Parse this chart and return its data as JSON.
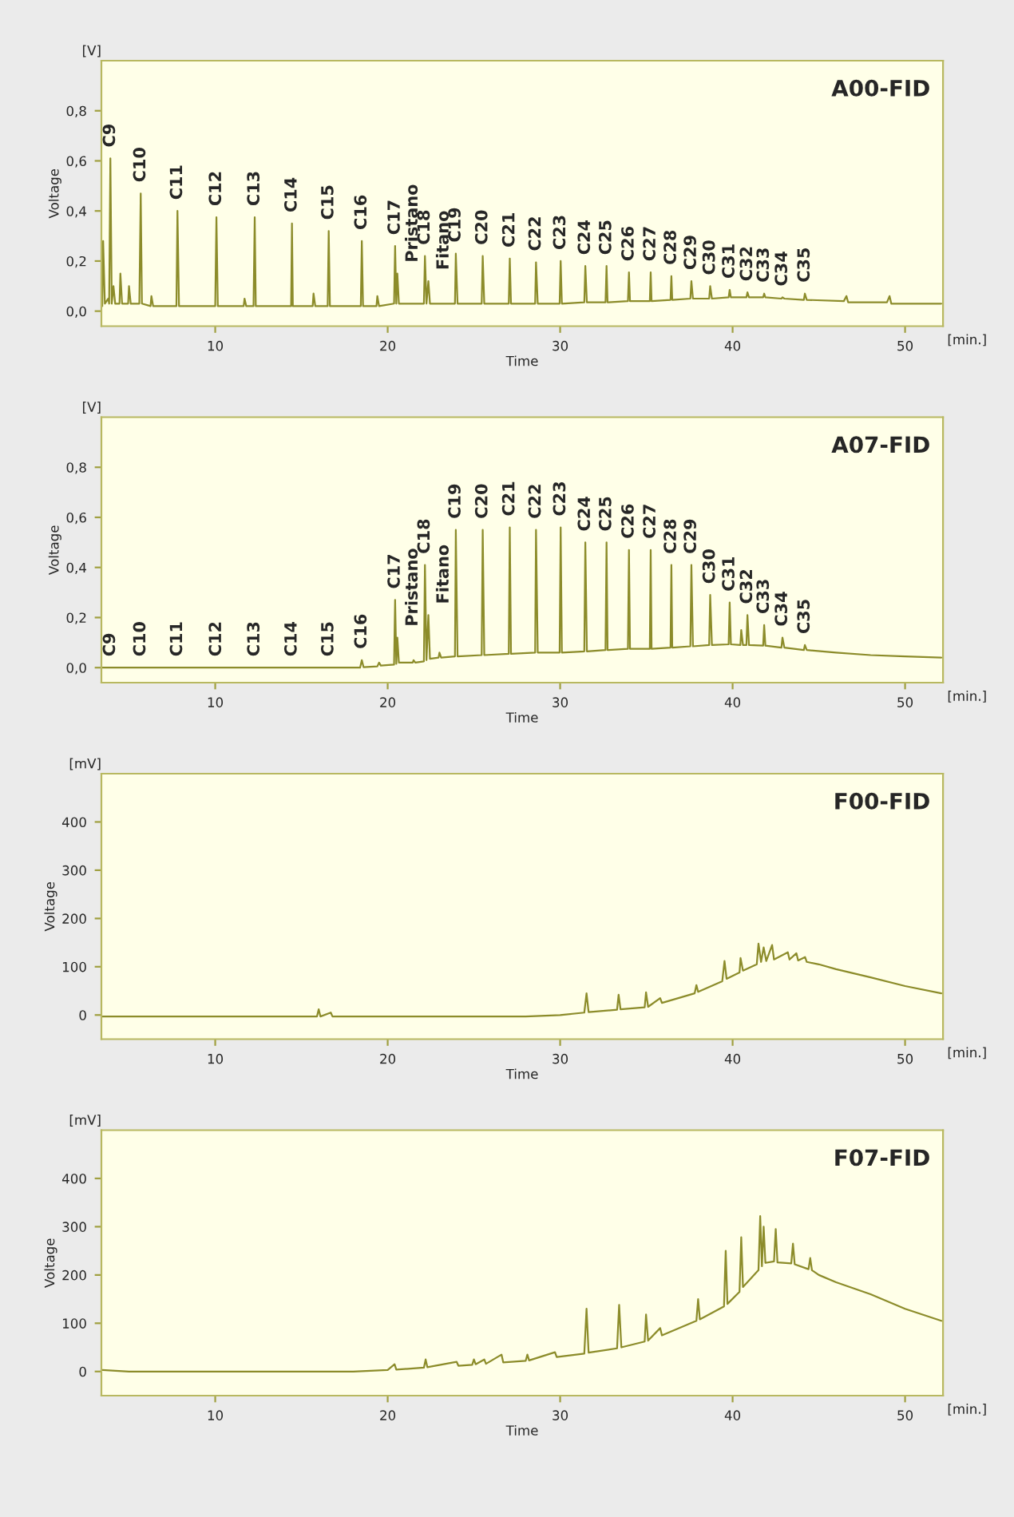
{
  "chart_data": [
    {
      "type": "line",
      "title": "A00-FID",
      "xlabel": "Time",
      "ylabel": "Voltage",
      "xlim": [
        3.4,
        52.2
      ],
      "xticks": [
        10,
        20,
        30,
        40,
        50
      ],
      "ylim": [
        -0.06,
        1.0
      ],
      "yticks": [
        {
          "value": 0,
          "label": "0,0"
        },
        {
          "value": 0.2,
          "label": "0,2"
        },
        {
          "value": 0.4,
          "label": "0,4"
        },
        {
          "value": 0.6,
          "label": "0,6"
        },
        {
          "value": 0.8,
          "label": "0,8"
        }
      ],
      "series": [
        {
          "color": "#8c8c2a",
          "x": [
            3.45,
            3.5,
            3.6,
            3.8,
            3.85,
            3.92,
            4.0,
            4.1,
            4.2,
            4.45,
            4.5,
            4.6,
            4.95,
            5.0,
            5.1,
            5.6,
            5.68,
            5.75,
            6.25,
            6.3,
            6.4,
            7.75,
            7.81,
            7.9,
            10.0,
            10.07,
            10.15,
            11.65,
            11.7,
            11.8,
            12.22,
            12.29,
            12.35,
            14.4,
            14.45,
            14.5,
            15.65,
            15.7,
            15.8,
            16.52,
            16.58,
            16.65,
            18.44,
            18.5,
            18.57,
            19.35,
            19.4,
            19.5,
            20.37,
            20.43,
            20.5,
            20.56,
            20.65,
            22.1,
            22.16,
            22.25,
            22.36,
            22.45,
            23.9,
            23.95,
            24.05,
            25.45,
            25.51,
            25.6,
            27.02,
            27.08,
            27.15,
            28.55,
            28.6,
            28.7,
            29.97,
            30.03,
            30.1,
            31.4,
            31.46,
            31.55,
            32.63,
            32.69,
            32.75,
            33.93,
            33.99,
            34.05,
            35.2,
            35.25,
            35.3,
            36.4,
            36.45,
            36.5,
            37.55,
            37.61,
            37.7,
            38.64,
            38.7,
            38.8,
            39.77,
            39.83,
            39.9,
            40.8,
            40.86,
            40.95,
            41.77,
            41.83,
            41.9,
            42.83,
            42.89,
            43.0,
            44.13,
            44.19,
            44.3,
            46.45,
            46.6,
            46.7,
            48.95,
            49.1,
            49.2,
            52.1
          ],
          "values": [
            0.02,
            0.28,
            0.03,
            0.05,
            0.03,
            0.61,
            0.03,
            0.1,
            0.03,
            0.03,
            0.15,
            0.03,
            0.03,
            0.1,
            0.03,
            0.03,
            0.47,
            0.03,
            0.02,
            0.06,
            0.02,
            0.02,
            0.4,
            0.02,
            0.02,
            0.375,
            0.02,
            0.02,
            0.05,
            0.02,
            0.02,
            0.375,
            0.02,
            0.02,
            0.35,
            0.02,
            0.02,
            0.07,
            0.02,
            0.02,
            0.32,
            0.02,
            0.02,
            0.28,
            0.02,
            0.02,
            0.06,
            0.02,
            0.03,
            0.26,
            0.03,
            0.15,
            0.03,
            0.03,
            0.22,
            0.03,
            0.12,
            0.03,
            0.03,
            0.23,
            0.03,
            0.03,
            0.22,
            0.03,
            0.03,
            0.21,
            0.03,
            0.03,
            0.195,
            0.03,
            0.03,
            0.2,
            0.03,
            0.035,
            0.18,
            0.035,
            0.035,
            0.18,
            0.035,
            0.04,
            0.155,
            0.04,
            0.04,
            0.155,
            0.04,
            0.045,
            0.14,
            0.045,
            0.05,
            0.12,
            0.05,
            0.05,
            0.1,
            0.05,
            0.055,
            0.085,
            0.055,
            0.055,
            0.075,
            0.055,
            0.055,
            0.07,
            0.055,
            0.05,
            0.055,
            0.05,
            0.045,
            0.07,
            0.045,
            0.04,
            0.06,
            0.035,
            0.035,
            0.06,
            0.03,
            0.03
          ]
        }
      ],
      "annotations": [
        "[V]",
        "[min.]",
        {
          "text": "C9",
          "x": 3.92,
          "y": 0.61
        },
        {
          "text": "C10",
          "x": 5.68,
          "y": 0.47
        },
        {
          "text": "C11",
          "x": 7.81,
          "y": 0.4
        },
        {
          "text": "C12",
          "x": 10.07,
          "y": 0.375
        },
        {
          "text": "C13",
          "x": 12.29,
          "y": 0.375
        },
        {
          "text": "C14",
          "x": 14.45,
          "y": 0.35
        },
        {
          "text": "C15",
          "x": 16.58,
          "y": 0.32
        },
        {
          "text": "C16",
          "x": 18.5,
          "y": 0.28
        },
        {
          "text": "C17",
          "x": 20.43,
          "y": 0.26
        },
        {
          "text": "Pristano",
          "x": 20.56,
          "y": 0.15
        },
        {
          "text": "C18",
          "x": 22.16,
          "y": 0.22
        },
        {
          "text": "Fitano",
          "x": 22.36,
          "y": 0.12
        },
        {
          "text": "C19",
          "x": 23.95,
          "y": 0.23
        },
        {
          "text": "C20",
          "x": 25.51,
          "y": 0.22
        },
        {
          "text": "C21",
          "x": 27.08,
          "y": 0.21
        },
        {
          "text": "C22",
          "x": 28.6,
          "y": 0.195
        },
        {
          "text": "C23",
          "x": 30.03,
          "y": 0.2
        },
        {
          "text": "C24",
          "x": 31.46,
          "y": 0.18
        },
        {
          "text": "C25",
          "x": 32.69,
          "y": 0.18
        },
        {
          "text": "C26",
          "x": 33.99,
          "y": 0.155
        },
        {
          "text": "C27",
          "x": 35.25,
          "y": 0.155
        },
        {
          "text": "C28",
          "x": 36.45,
          "y": 0.14
        },
        {
          "text": "C29",
          "x": 37.61,
          "y": 0.12
        },
        {
          "text": "C30",
          "x": 38.7,
          "y": 0.1
        },
        {
          "text": "C31",
          "x": 39.83,
          "y": 0.085
        },
        {
          "text": "C32",
          "x": 40.86,
          "y": 0.075
        },
        {
          "text": "C33",
          "x": 41.83,
          "y": 0.07
        },
        {
          "text": "C34",
          "x": 42.89,
          "y": 0.055
        },
        {
          "text": "C35",
          "x": 44.19,
          "y": 0.07
        }
      ]
    },
    {
      "type": "line",
      "title": "A07-FID",
      "xlabel": "Time",
      "ylabel": "Voltage",
      "xlim": [
        3.4,
        52.2
      ],
      "xticks": [
        10,
        20,
        30,
        40,
        50
      ],
      "ylim": [
        -0.06,
        1.0
      ],
      "yticks": [
        {
          "value": 0,
          "label": "0,0"
        },
        {
          "value": 0.2,
          "label": "0,2"
        },
        {
          "value": 0.4,
          "label": "0,4"
        },
        {
          "value": 0.6,
          "label": "0,6"
        },
        {
          "value": 0.8,
          "label": "0,8"
        }
      ],
      "series": [
        {
          "color": "#8c8c2a",
          "x": [
            3.45,
            18.4,
            18.5,
            18.6,
            19.4,
            19.5,
            19.6,
            20.37,
            20.43,
            20.5,
            20.56,
            20.65,
            21.45,
            21.5,
            21.6,
            22.1,
            22.16,
            22.25,
            22.36,
            22.45,
            22.95,
            23.0,
            23.1,
            23.9,
            23.95,
            24.05,
            25.45,
            25.51,
            25.6,
            27.02,
            27.08,
            27.15,
            28.55,
            28.6,
            28.7,
            29.97,
            30.03,
            30.1,
            31.4,
            31.46,
            31.55,
            32.63,
            32.69,
            32.75,
            33.93,
            33.99,
            34.05,
            35.2,
            35.25,
            35.3,
            36.4,
            36.45,
            36.5,
            37.55,
            37.61,
            37.7,
            38.64,
            38.7,
            38.8,
            39.77,
            39.83,
            39.9,
            40.45,
            40.5,
            40.6,
            40.8,
            40.86,
            40.95,
            41.77,
            41.83,
            41.9,
            42.83,
            42.89,
            43.0,
            44.13,
            44.19,
            44.3,
            46.0,
            48.0,
            50.0,
            52.1
          ],
          "values": [
            0.0,
            0.0,
            0.03,
            0.002,
            0.005,
            0.02,
            0.008,
            0.012,
            0.27,
            0.015,
            0.12,
            0.02,
            0.02,
            0.03,
            0.02,
            0.025,
            0.41,
            0.03,
            0.21,
            0.035,
            0.04,
            0.06,
            0.04,
            0.045,
            0.55,
            0.045,
            0.05,
            0.55,
            0.05,
            0.055,
            0.56,
            0.055,
            0.06,
            0.55,
            0.06,
            0.06,
            0.56,
            0.06,
            0.065,
            0.5,
            0.065,
            0.07,
            0.5,
            0.07,
            0.075,
            0.47,
            0.075,
            0.075,
            0.47,
            0.075,
            0.08,
            0.41,
            0.08,
            0.085,
            0.41,
            0.085,
            0.09,
            0.29,
            0.09,
            0.093,
            0.26,
            0.093,
            0.09,
            0.15,
            0.09,
            0.09,
            0.21,
            0.09,
            0.088,
            0.17,
            0.088,
            0.08,
            0.12,
            0.08,
            0.07,
            0.09,
            0.07,
            0.06,
            0.05,
            0.045,
            0.04
          ]
        }
      ],
      "annotations": [
        "[V]",
        "[min.]",
        {
          "text": "C9",
          "x": 3.92,
          "y": 0.0
        },
        {
          "text": "C10",
          "x": 5.68,
          "y": 0.0
        },
        {
          "text": "C11",
          "x": 7.81,
          "y": 0.0
        },
        {
          "text": "C12",
          "x": 10.07,
          "y": 0.0
        },
        {
          "text": "C13",
          "x": 12.29,
          "y": 0.0
        },
        {
          "text": "C14",
          "x": 14.45,
          "y": 0.0
        },
        {
          "text": "C15",
          "x": 16.58,
          "y": 0.0
        },
        {
          "text": "C16",
          "x": 18.5,
          "y": 0.03
        },
        {
          "text": "C17",
          "x": 20.43,
          "y": 0.27
        },
        {
          "text": "Pristano",
          "x": 20.56,
          "y": 0.12
        },
        {
          "text": "C18",
          "x": 22.16,
          "y": 0.41
        },
        {
          "text": "Fitano",
          "x": 22.36,
          "y": 0.21
        },
        {
          "text": "C19",
          "x": 23.95,
          "y": 0.55
        },
        {
          "text": "C20",
          "x": 25.51,
          "y": 0.55
        },
        {
          "text": "C21",
          "x": 27.08,
          "y": 0.56
        },
        {
          "text": "C22",
          "x": 28.6,
          "y": 0.55
        },
        {
          "text": "C23",
          "x": 30.03,
          "y": 0.56
        },
        {
          "text": "C24",
          "x": 31.46,
          "y": 0.5
        },
        {
          "text": "C25",
          "x": 32.69,
          "y": 0.5
        },
        {
          "text": "C26",
          "x": 33.99,
          "y": 0.47
        },
        {
          "text": "C27",
          "x": 35.25,
          "y": 0.47
        },
        {
          "text": "C28",
          "x": 36.45,
          "y": 0.41
        },
        {
          "text": "C29",
          "x": 37.61,
          "y": 0.41
        },
        {
          "text": "C30",
          "x": 38.7,
          "y": 0.29
        },
        {
          "text": "C31",
          "x": 39.83,
          "y": 0.26
        },
        {
          "text": "C32",
          "x": 40.86,
          "y": 0.21
        },
        {
          "text": "C33",
          "x": 41.83,
          "y": 0.17
        },
        {
          "text": "C34",
          "x": 42.89,
          "y": 0.12
        },
        {
          "text": "C35",
          "x": 44.19,
          "y": 0.09
        }
      ]
    },
    {
      "type": "line",
      "title": "F00-FID",
      "xlabel": "Time",
      "ylabel": "Voltage",
      "xlim": [
        3.4,
        52.2
      ],
      "xticks": [
        10,
        20,
        30,
        40,
        50
      ],
      "ylim": [
        -50,
        500
      ],
      "yticks": [
        0,
        100,
        200,
        300,
        400
      ],
      "series": [
        {
          "color": "#8c8c2a",
          "x": [
            3.45,
            15.9,
            16.0,
            16.1,
            16.7,
            16.8,
            28.0,
            30.0,
            31.4,
            31.53,
            31.65,
            33.3,
            33.39,
            33.5,
            34.9,
            34.98,
            35.1,
            35.8,
            35.9,
            37.8,
            37.9,
            38.0,
            39.4,
            39.53,
            39.65,
            40.4,
            40.46,
            40.6,
            41.4,
            41.5,
            41.65,
            41.8,
            41.95,
            42.29,
            42.4,
            43.2,
            43.3,
            43.7,
            43.8,
            44.2,
            44.3,
            45.0,
            46.0,
            48.0,
            50.0,
            52.1
          ],
          "values": [
            -3,
            -3,
            12,
            -3,
            5,
            -3,
            -3,
            0,
            5,
            45,
            6,
            11,
            42,
            12,
            16,
            47,
            17,
            35,
            25,
            45,
            62,
            48,
            70,
            112,
            75,
            88,
            118,
            92,
            105,
            148,
            110,
            140,
            112,
            145,
            115,
            130,
            115,
            128,
            113,
            120,
            110,
            105,
            95,
            78,
            60,
            45
          ]
        }
      ],
      "annotations": [
        "[mV]",
        "[min.]"
      ]
    },
    {
      "type": "line",
      "title": "F07-FID",
      "xlabel": "Time",
      "ylabel": "Voltage",
      "xlim": [
        3.4,
        52.2
      ],
      "xticks": [
        10,
        20,
        30,
        40,
        50
      ],
      "ylim": [
        -50,
        500
      ],
      "yticks": [
        0,
        100,
        200,
        300,
        400
      ],
      "series": [
        {
          "color": "#8c8c2a",
          "x": [
            3.45,
            5.0,
            18.0,
            20.0,
            20.4,
            20.5,
            22.1,
            22.2,
            22.3,
            24.0,
            24.1,
            24.9,
            25.0,
            25.1,
            25.6,
            25.7,
            26.6,
            26.7,
            28.0,
            28.1,
            28.2,
            29.7,
            29.8,
            31.4,
            31.53,
            31.65,
            33.3,
            33.42,
            33.55,
            34.9,
            34.98,
            35.1,
            35.8,
            35.9,
            37.9,
            38.0,
            38.1,
            39.5,
            39.6,
            39.7,
            40.4,
            40.5,
            40.6,
            41.5,
            41.6,
            41.7,
            41.8,
            41.9,
            42.4,
            42.5,
            42.6,
            43.4,
            43.5,
            43.6,
            44.4,
            44.5,
            44.6,
            45.0,
            46.0,
            48.0,
            50.0,
            52.1
          ],
          "values": [
            3,
            0,
            0,
            3,
            15,
            4,
            8,
            25,
            9,
            20,
            12,
            14,
            25,
            15,
            25,
            16,
            35,
            19,
            22,
            35,
            23,
            40,
            30,
            37,
            130,
            39,
            48,
            138,
            50,
            62,
            118,
            64,
            90,
            75,
            105,
            150,
            108,
            135,
            250,
            140,
            165,
            278,
            175,
            210,
            322,
            218,
            300,
            225,
            228,
            295,
            226,
            224,
            265,
            222,
            212,
            235,
            210,
            200,
            185,
            160,
            130,
            105
          ]
        }
      ],
      "annotations": [
        "[mV]",
        "[min.]"
      ]
    }
  ]
}
